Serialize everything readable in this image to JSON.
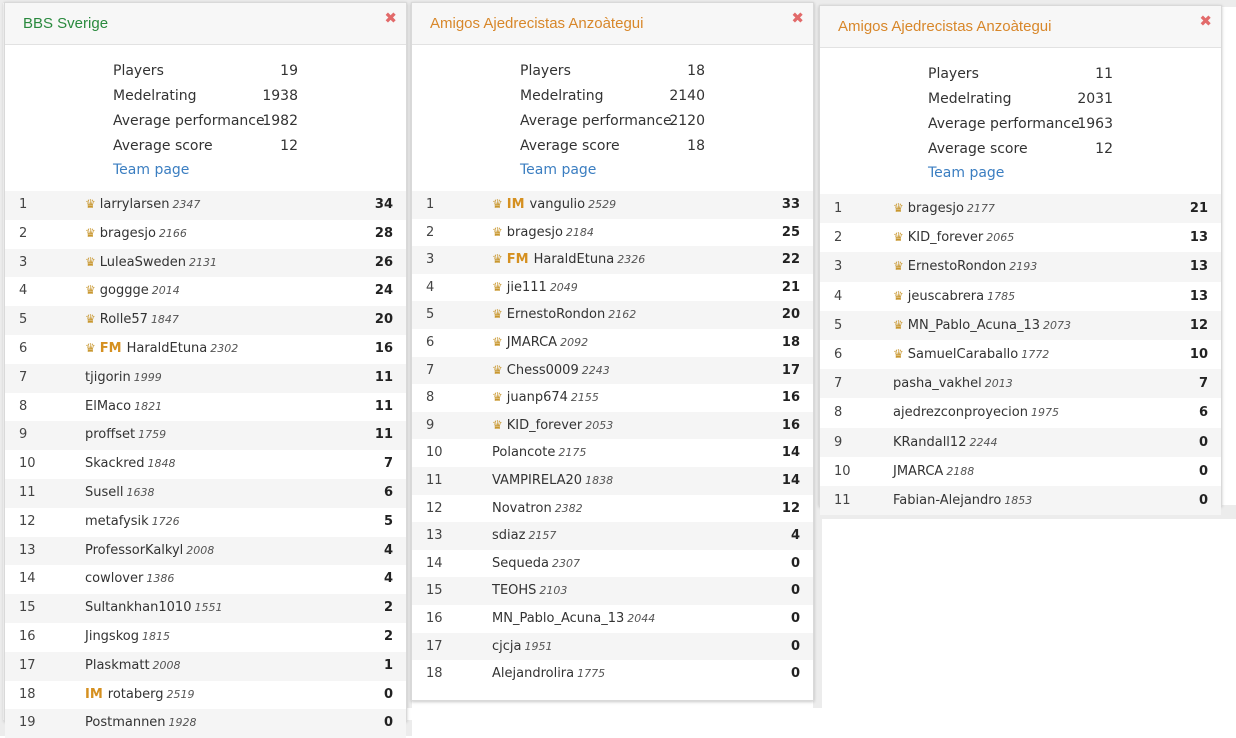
{
  "colors": {
    "team_green": "#2a8a3e",
    "team_orange": "#d8872a",
    "crown_gold": "#c8962d",
    "close_red": "#e26a6a",
    "link_blue": "#3b7ec1"
  },
  "labels": {
    "players": "Players",
    "medelrating": "Medelrating",
    "avg_perf": "Average performance",
    "avg_score": "Average score",
    "team_page": "Team page",
    "close": "✖"
  },
  "cards": [
    {
      "name": "BBS Sverige",
      "stats": {
        "players": "19",
        "medelrating": "1938",
        "avg_perf": "1982",
        "avg_score": "12"
      },
      "players": [
        {
          "rank": "1",
          "crown": true,
          "title": "",
          "name": "larrylarsen",
          "rating": "2347",
          "score": "34"
        },
        {
          "rank": "2",
          "crown": true,
          "title": "",
          "name": "bragesjo",
          "rating": "2166",
          "score": "28"
        },
        {
          "rank": "3",
          "crown": true,
          "title": "",
          "name": "LuleaSweden",
          "rating": "2131",
          "score": "26"
        },
        {
          "rank": "4",
          "crown": true,
          "title": "",
          "name": "goggge",
          "rating": "2014",
          "score": "24"
        },
        {
          "rank": "5",
          "crown": true,
          "title": "",
          "name": "Rolle57",
          "rating": "1847",
          "score": "20"
        },
        {
          "rank": "6",
          "crown": true,
          "title": "FM",
          "name": "HaraldEtuna",
          "rating": "2302",
          "score": "16"
        },
        {
          "rank": "7",
          "crown": false,
          "title": "",
          "name": "tjigorin",
          "rating": "1999",
          "score": "11"
        },
        {
          "rank": "8",
          "crown": false,
          "title": "",
          "name": "ElMaco",
          "rating": "1821",
          "score": "11"
        },
        {
          "rank": "9",
          "crown": false,
          "title": "",
          "name": "proffset",
          "rating": "1759",
          "score": "11"
        },
        {
          "rank": "10",
          "crown": false,
          "title": "",
          "name": "Skackred",
          "rating": "1848",
          "score": "7"
        },
        {
          "rank": "11",
          "crown": false,
          "title": "",
          "name": "Susell",
          "rating": "1638",
          "score": "6"
        },
        {
          "rank": "12",
          "crown": false,
          "title": "",
          "name": "metafysik",
          "rating": "1726",
          "score": "5"
        },
        {
          "rank": "13",
          "crown": false,
          "title": "",
          "name": "ProfessorKalkyl",
          "rating": "2008",
          "score": "4"
        },
        {
          "rank": "14",
          "crown": false,
          "title": "",
          "name": "cowlover",
          "rating": "1386",
          "score": "4"
        },
        {
          "rank": "15",
          "crown": false,
          "title": "",
          "name": "Sultankhan1010",
          "rating": "1551",
          "score": "2"
        },
        {
          "rank": "16",
          "crown": false,
          "title": "",
          "name": "Jingskog",
          "rating": "1815",
          "score": "2"
        },
        {
          "rank": "17",
          "crown": false,
          "title": "",
          "name": "Plaskmatt",
          "rating": "2008",
          "score": "1"
        },
        {
          "rank": "18",
          "crown": false,
          "title": "IM",
          "name": "rotaberg",
          "rating": "2519",
          "score": "0"
        },
        {
          "rank": "19",
          "crown": false,
          "title": "",
          "name": "Postmannen",
          "rating": "1928",
          "score": "0"
        }
      ]
    },
    {
      "name": "Amigos Ajedrecistas Anzoàtegui",
      "stats": {
        "players": "18",
        "medelrating": "2140",
        "avg_perf": "2120",
        "avg_score": "18"
      },
      "players": [
        {
          "rank": "1",
          "crown": true,
          "title": "IM",
          "name": "vangulio",
          "rating": "2529",
          "score": "33"
        },
        {
          "rank": "2",
          "crown": true,
          "title": "",
          "name": "bragesjo",
          "rating": "2184",
          "score": "25"
        },
        {
          "rank": "3",
          "crown": true,
          "title": "FM",
          "name": "HaraldEtuna",
          "rating": "2326",
          "score": "22"
        },
        {
          "rank": "4",
          "crown": true,
          "title": "",
          "name": "jie111",
          "rating": "2049",
          "score": "21"
        },
        {
          "rank": "5",
          "crown": true,
          "title": "",
          "name": "ErnestoRondon",
          "rating": "2162",
          "score": "20"
        },
        {
          "rank": "6",
          "crown": true,
          "title": "",
          "name": "JMARCA",
          "rating": "2092",
          "score": "18"
        },
        {
          "rank": "7",
          "crown": true,
          "title": "",
          "name": "Chess0009",
          "rating": "2243",
          "score": "17"
        },
        {
          "rank": "8",
          "crown": true,
          "title": "",
          "name": "juanp674",
          "rating": "2155",
          "score": "16"
        },
        {
          "rank": "9",
          "crown": true,
          "title": "",
          "name": "KID_forever",
          "rating": "2053",
          "score": "16"
        },
        {
          "rank": "10",
          "crown": false,
          "title": "",
          "name": "Polancote",
          "rating": "2175",
          "score": "14"
        },
        {
          "rank": "11",
          "crown": false,
          "title": "",
          "name": "VAMPIRELA20",
          "rating": "1838",
          "score": "14"
        },
        {
          "rank": "12",
          "crown": false,
          "title": "",
          "name": "Novatron",
          "rating": "2382",
          "score": "12"
        },
        {
          "rank": "13",
          "crown": false,
          "title": "",
          "name": "sdiaz",
          "rating": "2157",
          "score": "4"
        },
        {
          "rank": "14",
          "crown": false,
          "title": "",
          "name": "Sequeda",
          "rating": "2307",
          "score": "0"
        },
        {
          "rank": "15",
          "crown": false,
          "title": "",
          "name": "TEOHS",
          "rating": "2103",
          "score": "0"
        },
        {
          "rank": "16",
          "crown": false,
          "title": "",
          "name": "MN_Pablo_Acuna_13",
          "rating": "2044",
          "score": "0"
        },
        {
          "rank": "17",
          "crown": false,
          "title": "",
          "name": "cjcja",
          "rating": "1951",
          "score": "0"
        },
        {
          "rank": "18",
          "crown": false,
          "title": "",
          "name": "Alejandrolira",
          "rating": "1775",
          "score": "0"
        }
      ]
    },
    {
      "name": "Amigos Ajedrecistas Anzoàtegui",
      "stats": {
        "players": "11",
        "medelrating": "2031",
        "avg_perf": "1963",
        "avg_score": "12"
      },
      "players": [
        {
          "rank": "1",
          "crown": true,
          "title": "",
          "name": "bragesjo",
          "rating": "2177",
          "score": "21"
        },
        {
          "rank": "2",
          "crown": true,
          "title": "",
          "name": "KID_forever",
          "rating": "2065",
          "score": "13"
        },
        {
          "rank": "3",
          "crown": true,
          "title": "",
          "name": "ErnestoRondon",
          "rating": "2193",
          "score": "13"
        },
        {
          "rank": "4",
          "crown": true,
          "title": "",
          "name": "jeuscabrera",
          "rating": "1785",
          "score": "13"
        },
        {
          "rank": "5",
          "crown": true,
          "title": "",
          "name": "MN_Pablo_Acuna_13",
          "rating": "2073",
          "score": "12"
        },
        {
          "rank": "6",
          "crown": true,
          "title": "",
          "name": "SamuelCaraballo",
          "rating": "1772",
          "score": "10"
        },
        {
          "rank": "7",
          "crown": false,
          "title": "",
          "name": "pasha_vakhel",
          "rating": "2013",
          "score": "7"
        },
        {
          "rank": "8",
          "crown": false,
          "title": "",
          "name": "ajedrezconproyecion",
          "rating": "1975",
          "score": "6"
        },
        {
          "rank": "9",
          "crown": false,
          "title": "",
          "name": "KRandall12",
          "rating": "2244",
          "score": "0"
        },
        {
          "rank": "10",
          "crown": false,
          "title": "",
          "name": "JMARCA",
          "rating": "2188",
          "score": "0"
        },
        {
          "rank": "11",
          "crown": false,
          "title": "",
          "name": "Fabian-Alejandro",
          "rating": "1853",
          "score": "0"
        }
      ]
    }
  ]
}
